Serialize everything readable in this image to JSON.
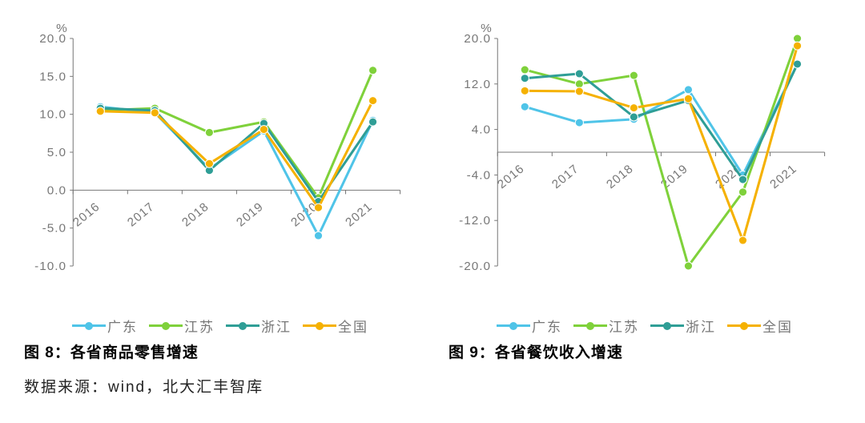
{
  "chart8": {
    "type": "line",
    "unit": "%",
    "years": [
      "2016",
      "2017",
      "2018",
      "2019",
      "2020",
      "2021"
    ],
    "ylim": [
      -10.0,
      20.0
    ],
    "ytick_step": 5.0,
    "yticks": [
      "-10.0",
      "-5.0",
      "0.0",
      "5.0",
      "10.0",
      "15.0",
      "20.0"
    ],
    "series": [
      {
        "name": "广东",
        "color": "#4fc4e8",
        "values": [
          11.0,
          10.2,
          2.8,
          7.8,
          -6.0,
          9.2
        ]
      },
      {
        "name": "江苏",
        "color": "#7fd13b",
        "values": [
          10.5,
          10.8,
          7.6,
          9.0,
          -1.0,
          15.8
        ]
      },
      {
        "name": "浙江",
        "color": "#2f9e96",
        "values": [
          10.8,
          10.5,
          2.6,
          8.8,
          -1.5,
          9.0
        ]
      },
      {
        "name": "全国",
        "color": "#f5b100",
        "values": [
          10.4,
          10.2,
          3.5,
          8.0,
          -2.3,
          11.8
        ]
      }
    ],
    "title": "图 8：各省商品零售增速",
    "axis_color": "#777777",
    "grid_color": "#ffffff",
    "line_width": 3,
    "marker_radius": 5,
    "label_rotation": -40,
    "background_color": "#ffffff",
    "label_fontsize": 15
  },
  "chart9": {
    "type": "line",
    "unit": "%",
    "years": [
      "2016",
      "2017",
      "2018",
      "2019",
      "2020",
      "2021"
    ],
    "ylim": [
      -20.0,
      20.0
    ],
    "ytick_step": 8.0,
    "yticks": [
      "-20.0",
      "-12.0",
      "-4.0",
      "4.0",
      "12.0",
      "20.0"
    ],
    "series": [
      {
        "name": "广东",
        "color": "#4fc4e8",
        "values": [
          8.0,
          5.2,
          5.8,
          11.0,
          -4.0,
          15.5
        ]
      },
      {
        "name": "江苏",
        "color": "#7fd13b",
        "values": [
          14.5,
          12.0,
          13.5,
          -20.0,
          -7.0,
          20.0
        ]
      },
      {
        "name": "浙江",
        "color": "#2f9e96",
        "values": [
          13.0,
          13.8,
          6.2,
          9.1,
          -4.8,
          15.5
        ]
      },
      {
        "name": "全国",
        "color": "#f5b100",
        "values": [
          10.8,
          10.7,
          7.8,
          9.4,
          -15.5,
          18.7
        ]
      }
    ],
    "title": "图 9：各省餐饮收入增速",
    "axis_color": "#777777",
    "grid_color": "#ffffff",
    "line_width": 3,
    "marker_radius": 5,
    "label_rotation": -40,
    "background_color": "#ffffff",
    "label_fontsize": 15
  },
  "legend": [
    {
      "name": "广东",
      "color": "#4fc4e8"
    },
    {
      "name": "江苏",
      "color": "#7fd13b"
    },
    {
      "name": "浙江",
      "color": "#2f9e96"
    },
    {
      "name": "全国",
      "color": "#f5b100"
    }
  ],
  "source": "数据来源：wind，北大汇丰智库"
}
